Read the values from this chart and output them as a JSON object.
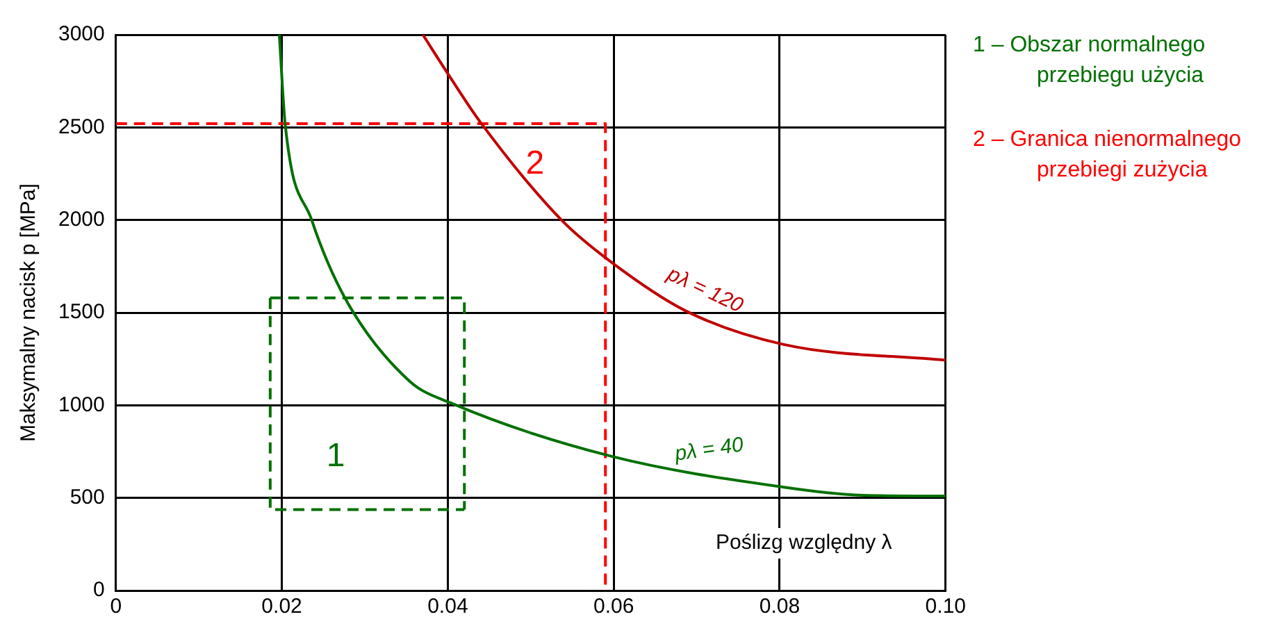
{
  "chart_data": {
    "type": "line",
    "ylabel": "Maksymalny nacisk p [MPa]",
    "xlabel": "Poślizg względny λ",
    "xlim": [
      0,
      0.1
    ],
    "ylim": [
      0,
      3000
    ],
    "xticks": [
      0,
      0.02,
      0.04,
      0.06,
      0.08,
      {
        "value": 0.1,
        "label": "0.10"
      }
    ],
    "yticks": [
      0,
      500,
      1000,
      1500,
      2000,
      2500,
      3000
    ],
    "grid": true,
    "marker": "none",
    "series": [
      {
        "color": "#007000",
        "x": [
          0.0197,
          0.0204,
          0.0236,
          0.0276,
          0.0354,
          0.0405,
          0.0596,
          0.0805,
          0.0896,
          0.1
        ],
        "values": [
          3000,
          2520,
          2000,
          1580,
          1130,
          1010,
          726,
          558,
          515,
          510
        ]
      },
      {
        "color": "#c00000",
        "x": [
          0.037,
          0.0403,
          0.0439,
          0.0537,
          0.0596,
          0.0687,
          0.0805,
          0.1
        ],
        "values": [
          3000,
          2770,
          2530,
          2000,
          1776,
          1509,
          1328,
          1243
        ]
      },
      {
        "color": "#007000",
        "line_style": "dashed",
        "x": [
          0.0186,
          0.042,
          0.042
        ],
        "values": [
          1580,
          1580,
          437
        ]
      },
      {
        "color": "#007000",
        "line_style": "dashed",
        "x": [
          0.0186,
          0.0186,
          0.042
        ],
        "values": [
          1580,
          437,
          437
        ]
      },
      {
        "color": "#ff0000",
        "line_style": "dashed",
        "x": [
          0,
          0.059,
          0.059
        ],
        "values": [
          2520,
          2520,
          0
        ]
      }
    ],
    "annotations": [
      "pλ = 40",
      "pλ = 120",
      "1",
      "2",
      "1 – Obszar normalnego przebiegu użycia",
      "2 – Granica nienormalnego przebiegi zużycia"
    ]
  }
}
